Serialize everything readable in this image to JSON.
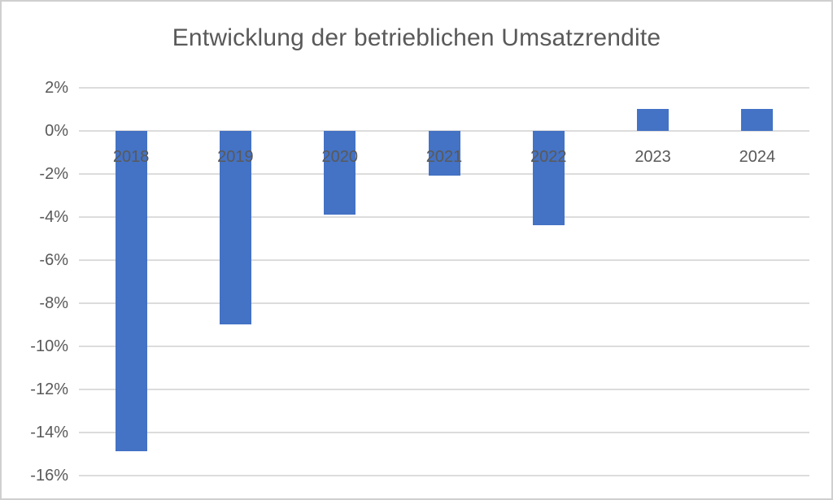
{
  "chart_data": {
    "type": "bar",
    "title": "Entwicklung der betrieblichen Umsatzrendite",
    "categories": [
      "2018",
      "2019",
      "2020",
      "2021",
      "2022",
      "2023",
      "2024"
    ],
    "values": [
      -14.9,
      -9.0,
      -3.9,
      -2.1,
      -4.4,
      1.0,
      1.0
    ],
    "unit": "percent",
    "xlabel": "",
    "ylabel": "",
    "ylim": [
      -16,
      2
    ],
    "yticks": [
      {
        "value": 2,
        "label": "2%"
      },
      {
        "value": 0,
        "label": "0%"
      },
      {
        "value": -2,
        "label": "-2%"
      },
      {
        "value": -4,
        "label": "-4%"
      },
      {
        "value": -6,
        "label": "-6%"
      },
      {
        "value": -8,
        "label": "-8%"
      },
      {
        "value": -10,
        "label": "-10%"
      },
      {
        "value": -12,
        "label": "-12%"
      },
      {
        "value": -14,
        "label": "-14%"
      },
      {
        "value": -16,
        "label": "-16%"
      }
    ],
    "grid": true,
    "legend_position": "none",
    "colors": {
      "bar": "#4472C4",
      "text": "#595959",
      "gridline": "#DCDCDC",
      "border": "#CFCFCF",
      "background": "#FFFFFF"
    }
  }
}
